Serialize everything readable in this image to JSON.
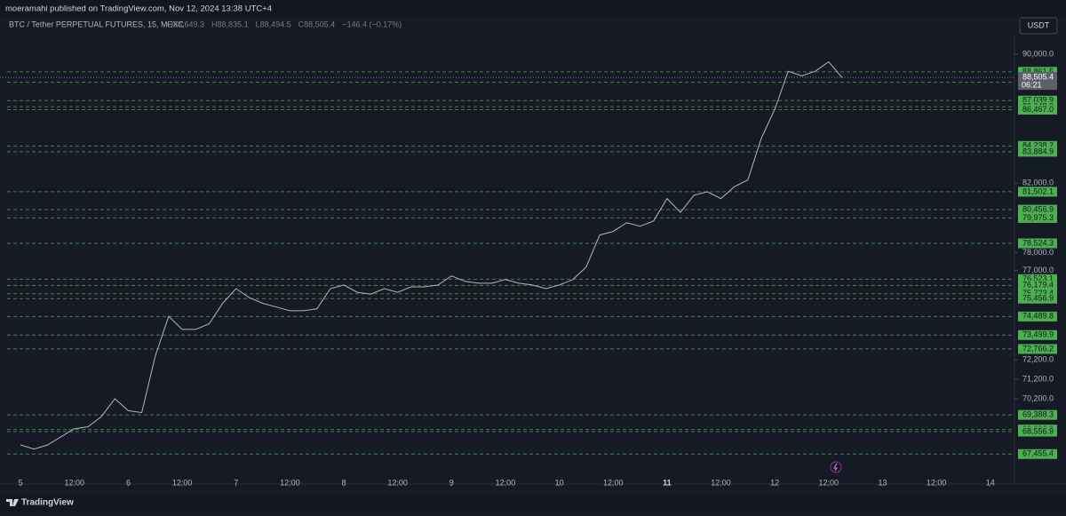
{
  "header": {
    "publisher": "moeramahi published on TradingView.com, Nov 12, 2024 13:38 UTC+4"
  },
  "footer": {
    "brand": "TradingView"
  },
  "chart_data": {
    "type": "line",
    "title": "BTC / Tether PERPETUAL FUTURES, 15, MEXC",
    "ohlc": [
      "O88,649.3",
      "H88,835.1",
      "L88,494.5",
      "C88,505.4",
      "−146.4 (−0.17%)"
    ],
    "currency": "USDT",
    "log_scale": true,
    "xlim": [
      -3,
      221
    ],
    "xticks": [
      {
        "value": 0,
        "label": "5"
      },
      {
        "value": 12,
        "label": "12:00"
      },
      {
        "value": 24,
        "label": "6"
      },
      {
        "value": 36,
        "label": "12:00"
      },
      {
        "value": 48,
        "label": "7"
      },
      {
        "value": 60,
        "label": "12:00"
      },
      {
        "value": 72,
        "label": "8"
      },
      {
        "value": 84,
        "label": "12:00"
      },
      {
        "value": 96,
        "label": "9"
      },
      {
        "value": 108,
        "label": "12:00"
      },
      {
        "value": 120,
        "label": "10"
      },
      {
        "value": 132,
        "label": "12:00"
      },
      {
        "value": 144,
        "label": "11"
      },
      {
        "value": 156,
        "label": "12:00"
      },
      {
        "value": 168,
        "label": "12"
      },
      {
        "value": 180,
        "label": "12:00"
      },
      {
        "value": 192,
        "label": "13"
      },
      {
        "value": 204,
        "label": "12:00"
      },
      {
        "value": 216,
        "label": "14"
      }
    ],
    "ylim": [
      66865,
      91219
    ],
    "yticks": [
      {
        "value": 90000,
        "label": "90,000.0"
      },
      {
        "value": 82000,
        "label": "82,000.0"
      },
      {
        "value": 78000,
        "label": "78,000.0"
      },
      {
        "value": 77000,
        "label": "77,000.0"
      },
      {
        "value": 72200,
        "label": "72,200.0"
      },
      {
        "value": 71200,
        "label": "71,200.0"
      },
      {
        "value": 70200,
        "label": "70,200.0"
      }
    ],
    "series": [
      {
        "name": "BTC / Tether",
        "color": "#b2b5be",
        "x": [
          0,
          3,
          6,
          9,
          12,
          15,
          18,
          21,
          24,
          27,
          30,
          33,
          36,
          39,
          42,
          45,
          48,
          51,
          54,
          57,
          60,
          63,
          66,
          69,
          72,
          75,
          78,
          81,
          84,
          87,
          90,
          93,
          96,
          99,
          102,
          105,
          108,
          111,
          114,
          117,
          120,
          123,
          126,
          129,
          132,
          135,
          138,
          141,
          144,
          147,
          150,
          153,
          156,
          159,
          162,
          165,
          168,
          171,
          174,
          177,
          180,
          183
        ],
        "values": [
          67900,
          67700,
          67900,
          68300,
          68700,
          68800,
          69300,
          70200,
          69600,
          69500,
          72400,
          74500,
          73800,
          73800,
          74100,
          75200,
          76000,
          75500,
          75200,
          75000,
          74800,
          74800,
          74900,
          76000,
          76200,
          75800,
          75700,
          76000,
          75800,
          76100,
          76100,
          76200,
          76700,
          76400,
          76300,
          76300,
          76500,
          76300,
          76200,
          76000,
          76200,
          76500,
          77200,
          79000,
          79200,
          79700,
          79500,
          79800,
          81100,
          80300,
          81300,
          81500,
          81100,
          81800,
          82200,
          84700,
          86500,
          88900,
          88600,
          88900,
          89500,
          88500
        ]
      }
    ],
    "last_price": {
      "value": 88505.4,
      "label": "88,505.4",
      "countdown": "06:21"
    },
    "levels": {
      "color": "#4caf50",
      "values": [
        88861.5,
        88197.1,
        87039.9,
        86648.9,
        86467.0,
        84238.2,
        83884.9,
        81502.1,
        80456.9,
        79975.3,
        78524.3,
        76523.1,
        76179.4,
        75723.4,
        75456.9,
        74489.8,
        73499.9,
        72766.2,
        69388.3,
        68660.3,
        68556.9,
        67455.4
      ],
      "value_labels": [
        "88,861.5",
        "88,197.1",
        "87,039.9",
        "86,648.9",
        "86,467.0",
        "84,238.2",
        "83,884.9",
        "81,502.1",
        "80,456.9",
        "79,975.3",
        "78,524.3",
        "76,523.1",
        "76,179.4",
        "75,723.4",
        "75,456.9",
        "74,489.8",
        "73,499.9",
        "72,766.2",
        "69,388.3",
        "68,660.3",
        "68,556.9",
        "67,455.4"
      ]
    }
  }
}
